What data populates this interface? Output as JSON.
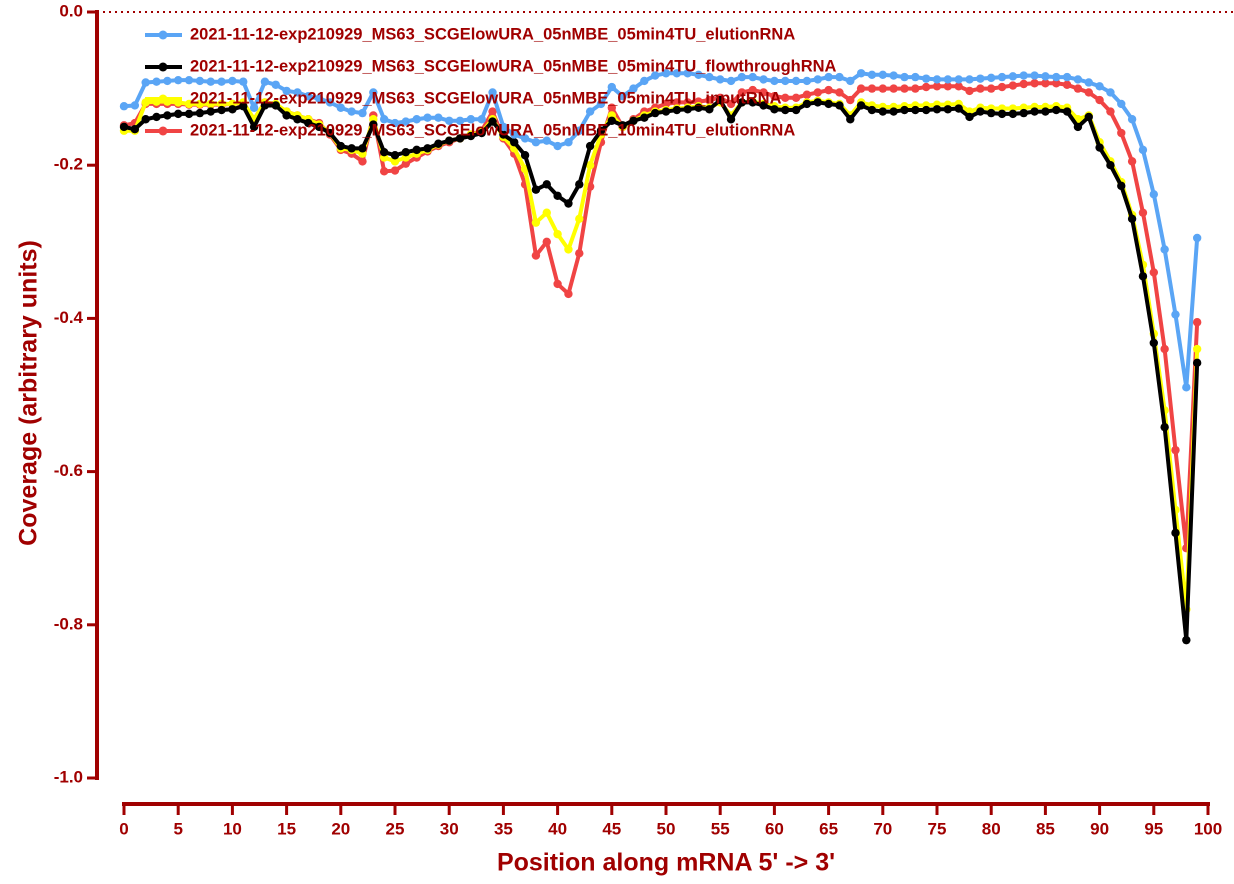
{
  "chart_data": {
    "type": "line",
    "x_label": "Position along mRNA 5' -> 3'",
    "y_label": "Coverage (arbitrary units)",
    "x": [
      0,
      1,
      2,
      3,
      4,
      5,
      6,
      7,
      8,
      9,
      10,
      11,
      12,
      13,
      14,
      15,
      16,
      17,
      18,
      19,
      20,
      21,
      22,
      23,
      24,
      25,
      26,
      27,
      28,
      29,
      30,
      31,
      32,
      33,
      34,
      35,
      36,
      37,
      38,
      39,
      40,
      41,
      42,
      43,
      44,
      45,
      46,
      47,
      48,
      49,
      50,
      51,
      52,
      53,
      54,
      55,
      56,
      57,
      58,
      59,
      60,
      61,
      62,
      63,
      64,
      65,
      66,
      67,
      68,
      69,
      70,
      71,
      72,
      73,
      74,
      75,
      76,
      77,
      78,
      79,
      80,
      81,
      82,
      83,
      84,
      85,
      86,
      87,
      88,
      89,
      90,
      91,
      92,
      93,
      94,
      95,
      96,
      97,
      98,
      99
    ],
    "xlim": [
      0,
      100
    ],
    "xticks": [
      0,
      5,
      10,
      15,
      20,
      25,
      30,
      35,
      40,
      45,
      50,
      55,
      60,
      65,
      70,
      75,
      80,
      85,
      90,
      95,
      100
    ],
    "ylim": [
      -1,
      0
    ],
    "yticks": [
      {
        "value": -1,
        "label": "-1.0"
      },
      -0.8,
      -0.6,
      -0.4,
      -0.2,
      {
        "value": 0,
        "label": "0.0"
      }
    ],
    "zero_line": true,
    "axis_color": "#a00000",
    "series": [
      {
        "name": "2021-11-12-exp210929_MS63_SCGElowURA_05nMBE_05min4TU_elutionRNA",
        "color": "#5aa5f5",
        "values": [
          -0.123,
          -0.122,
          -0.092,
          -0.091,
          -0.09,
          -0.089,
          -0.089,
          -0.09,
          -0.091,
          -0.091,
          -0.09,
          -0.091,
          -0.125,
          -0.091,
          -0.095,
          -0.103,
          -0.105,
          -0.11,
          -0.113,
          -0.118,
          -0.125,
          -0.13,
          -0.132,
          -0.105,
          -0.14,
          -0.145,
          -0.143,
          -0.14,
          -0.138,
          -0.138,
          -0.142,
          -0.142,
          -0.14,
          -0.14,
          -0.105,
          -0.15,
          -0.16,
          -0.165,
          -0.17,
          -0.168,
          -0.175,
          -0.17,
          -0.155,
          -0.13,
          -0.12,
          -0.098,
          -0.11,
          -0.1,
          -0.09,
          -0.083,
          -0.08,
          -0.08,
          -0.08,
          -0.082,
          -0.085,
          -0.088,
          -0.09,
          -0.085,
          -0.085,
          -0.088,
          -0.09,
          -0.09,
          -0.09,
          -0.09,
          -0.088,
          -0.085,
          -0.085,
          -0.09,
          -0.08,
          -0.082,
          -0.082,
          -0.083,
          -0.085,
          -0.085,
          -0.087,
          -0.088,
          -0.088,
          -0.088,
          -0.088,
          -0.087,
          -0.086,
          -0.085,
          -0.084,
          -0.083,
          -0.083,
          -0.084,
          -0.085,
          -0.085,
          -0.088,
          -0.092,
          -0.097,
          -0.105,
          -0.12,
          -0.14,
          -0.18,
          -0.238,
          -0.31,
          -0.395,
          -0.49,
          -0.295
        ]
      },
      {
        "name": "2021-11-12-exp210929_MS63_SCGElowURA_05nMBE_05min4TU_flowthroughRNA",
        "color": "#000000",
        "values": [
          -0.15,
          -0.153,
          -0.14,
          -0.137,
          -0.135,
          -0.133,
          -0.133,
          -0.132,
          -0.13,
          -0.128,
          -0.127,
          -0.123,
          -0.15,
          -0.122,
          -0.122,
          -0.135,
          -0.14,
          -0.145,
          -0.15,
          -0.158,
          -0.175,
          -0.178,
          -0.178,
          -0.147,
          -0.183,
          -0.187,
          -0.183,
          -0.18,
          -0.178,
          -0.172,
          -0.168,
          -0.165,
          -0.162,
          -0.158,
          -0.143,
          -0.16,
          -0.17,
          -0.187,
          -0.232,
          -0.225,
          -0.24,
          -0.25,
          -0.225,
          -0.175,
          -0.155,
          -0.142,
          -0.148,
          -0.142,
          -0.138,
          -0.132,
          -0.13,
          -0.128,
          -0.127,
          -0.125,
          -0.127,
          -0.115,
          -0.14,
          -0.118,
          -0.118,
          -0.122,
          -0.127,
          -0.128,
          -0.128,
          -0.12,
          -0.118,
          -0.12,
          -0.122,
          -0.14,
          -0.122,
          -0.128,
          -0.13,
          -0.13,
          -0.128,
          -0.128,
          -0.128,
          -0.127,
          -0.127,
          -0.126,
          -0.137,
          -0.13,
          -0.132,
          -0.133,
          -0.133,
          -0.132,
          -0.13,
          -0.13,
          -0.128,
          -0.13,
          -0.15,
          -0.137,
          -0.177,
          -0.2,
          -0.227,
          -0.27,
          -0.345,
          -0.432,
          -0.542,
          -0.68,
          -0.82,
          -0.458
        ]
      },
      {
        "name": "2021-11-12-exp210929_MS63_SCGElowURA_05nMBE_05min4TU_inputRNA",
        "color": "#ffff00",
        "values": [
          -0.155,
          -0.155,
          -0.118,
          -0.117,
          -0.117,
          -0.118,
          -0.12,
          -0.12,
          -0.12,
          -0.12,
          -0.12,
          -0.118,
          -0.14,
          -0.118,
          -0.12,
          -0.13,
          -0.135,
          -0.14,
          -0.147,
          -0.158,
          -0.178,
          -0.18,
          -0.185,
          -0.14,
          -0.19,
          -0.195,
          -0.19,
          -0.185,
          -0.18,
          -0.173,
          -0.168,
          -0.165,
          -0.16,
          -0.157,
          -0.14,
          -0.163,
          -0.178,
          -0.205,
          -0.275,
          -0.262,
          -0.29,
          -0.31,
          -0.27,
          -0.2,
          -0.16,
          -0.135,
          -0.15,
          -0.142,
          -0.135,
          -0.13,
          -0.128,
          -0.126,
          -0.125,
          -0.123,
          -0.125,
          -0.118,
          -0.135,
          -0.118,
          -0.117,
          -0.12,
          -0.123,
          -0.125,
          -0.125,
          -0.118,
          -0.116,
          -0.118,
          -0.12,
          -0.135,
          -0.118,
          -0.122,
          -0.124,
          -0.124,
          -0.123,
          -0.122,
          -0.122,
          -0.121,
          -0.121,
          -0.12,
          -0.13,
          -0.125,
          -0.126,
          -0.126,
          -0.126,
          -0.125,
          -0.124,
          -0.124,
          -0.123,
          -0.125,
          -0.14,
          -0.135,
          -0.17,
          -0.195,
          -0.222,
          -0.265,
          -0.33,
          -0.42,
          -0.52,
          -0.65,
          -0.78,
          -0.44
        ]
      },
      {
        "name": "2021-11-12-exp210929_MS63_SCGElowURA_05nMBE_10min4TU_elutionRNA",
        "color": "#f04444",
        "values": [
          -0.148,
          -0.145,
          -0.12,
          -0.12,
          -0.12,
          -0.12,
          -0.121,
          -0.121,
          -0.121,
          -0.121,
          -0.12,
          -0.119,
          -0.14,
          -0.118,
          -0.122,
          -0.13,
          -0.135,
          -0.14,
          -0.145,
          -0.16,
          -0.18,
          -0.185,
          -0.195,
          -0.135,
          -0.208,
          -0.207,
          -0.198,
          -0.19,
          -0.182,
          -0.175,
          -0.17,
          -0.165,
          -0.16,
          -0.155,
          -0.13,
          -0.165,
          -0.185,
          -0.225,
          -0.318,
          -0.3,
          -0.355,
          -0.368,
          -0.315,
          -0.228,
          -0.17,
          -0.125,
          -0.15,
          -0.14,
          -0.13,
          -0.125,
          -0.12,
          -0.118,
          -0.118,
          -0.117,
          -0.115,
          -0.112,
          -0.12,
          -0.105,
          -0.102,
          -0.105,
          -0.11,
          -0.112,
          -0.112,
          -0.108,
          -0.105,
          -0.102,
          -0.105,
          -0.115,
          -0.1,
          -0.1,
          -0.1,
          -0.1,
          -0.1,
          -0.1,
          -0.098,
          -0.097,
          -0.097,
          -0.097,
          -0.103,
          -0.1,
          -0.1,
          -0.098,
          -0.096,
          -0.094,
          -0.093,
          -0.093,
          -0.093,
          -0.095,
          -0.1,
          -0.105,
          -0.115,
          -0.13,
          -0.158,
          -0.195,
          -0.262,
          -0.34,
          -0.44,
          -0.572,
          -0.7,
          -0.405
        ]
      }
    ]
  }
}
